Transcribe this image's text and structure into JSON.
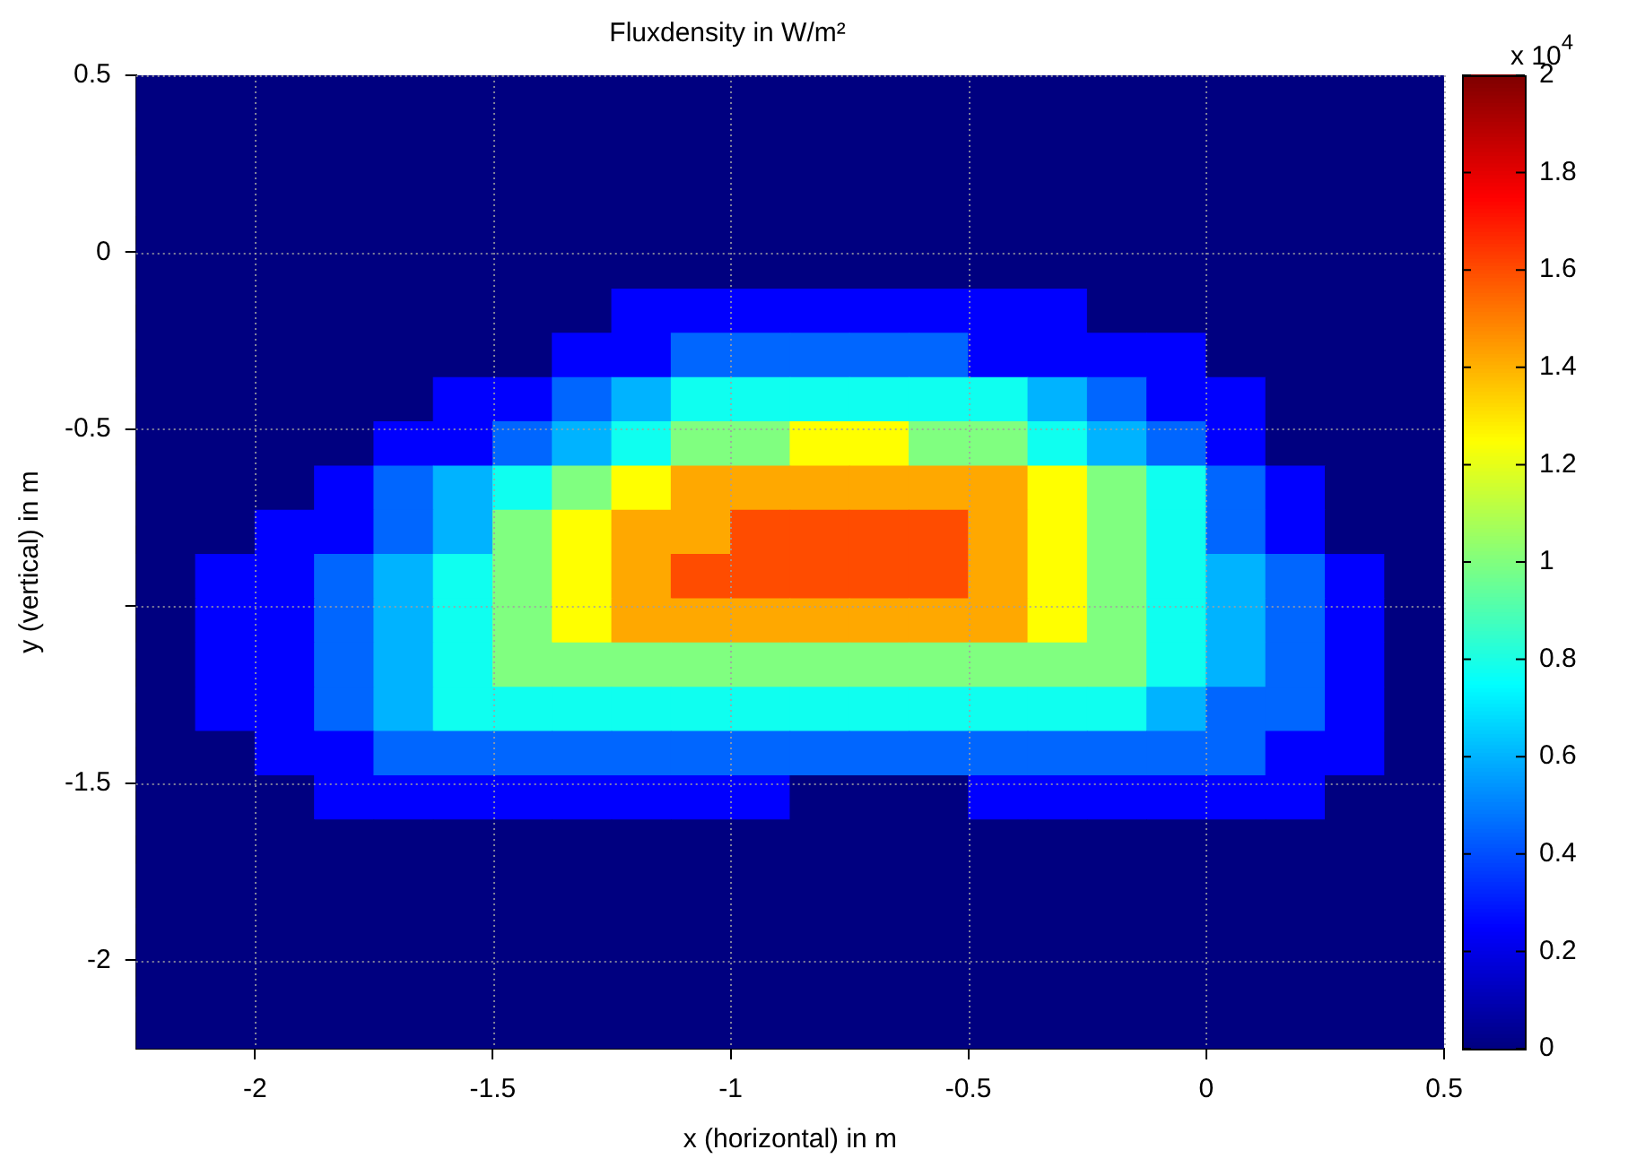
{
  "chart_data": {
    "type": "scatter",
    "title": "Fluxdensity in W/m²",
    "xlabel": "x (horizontal) in m",
    "ylabel": "y (vertical) in m",
    "annotations": [
      "x 10$^{4}$"
    ],
    "xlim": [
      -2.25,
      0.5
    ],
    "ylim": [
      -2.25,
      0.5
    ],
    "xticks": [
      -2,
      -1.5,
      -1,
      -0.5,
      0,
      0.5
    ],
    "yticks": [
      -2,
      -1.5,
      {
        "value": -1,
        "label": null
      },
      -0.5,
      0,
      0.5
    ],
    "grid": true,
    "marker": "square",
    "clim": [
      0,
      2
    ],
    "cticks": [
      0,
      0.2,
      0.4,
      0.6,
      0.8,
      1,
      1.2,
      1.4,
      1.6,
      1.8,
      2
    ],
    "x": [
      -2.1875,
      -2.0625,
      -1.9375,
      -1.8125,
      -1.6875,
      -1.5625,
      -1.4375,
      -1.3125,
      -1.1875,
      -1.0625,
      -0.9375,
      -0.8125,
      -0.6875,
      -0.5625,
      -0.4375,
      -0.3125,
      -0.1875,
      -0.0625,
      0.0625,
      0.1875,
      0.3125,
      0.4375,
      -2.1875,
      -2.0625,
      -1.9375,
      -1.8125,
      -1.6875,
      -1.5625,
      -1.4375,
      -1.3125,
      -1.1875,
      -1.0625,
      -0.9375,
      -0.8125,
      -0.6875,
      -0.5625,
      -0.4375,
      -0.3125,
      -0.1875,
      -0.0625,
      0.0625,
      0.1875,
      0.3125,
      0.4375,
      -2.1875,
      -2.0625,
      -1.9375,
      -1.8125,
      -1.6875,
      -1.5625,
      -1.4375,
      -1.3125,
      -1.1875,
      -1.0625,
      -0.9375,
      -0.8125,
      -0.6875,
      -0.5625,
      -0.4375,
      -0.3125,
      -0.1875,
      -0.0625,
      0.0625,
      0.1875,
      0.3125,
      0.4375,
      -2.1875,
      -2.0625,
      -1.9375,
      -1.8125,
      -1.6875,
      -1.5625,
      -1.4375,
      -1.3125,
      -1.1875,
      -1.0625,
      -0.9375,
      -0.8125,
      -0.6875,
      -0.5625,
      -0.4375,
      -0.3125,
      -0.1875,
      -0.0625,
      0.0625,
      0.1875,
      0.3125,
      0.4375,
      -2.1875,
      -2.0625,
      -1.9375,
      -1.8125,
      -1.6875,
      -1.5625,
      -1.4375,
      -1.3125,
      -1.1875,
      -1.0625,
      -0.9375,
      -0.8125,
      -0.6875,
      -0.5625,
      -0.4375,
      -0.3125,
      -0.1875,
      -0.0625,
      0.0625,
      0.1875,
      0.3125,
      0.4375,
      -2.1875,
      -2.0625,
      -1.9375,
      -1.8125,
      -1.6875,
      -1.5625,
      -1.4375,
      -1.3125,
      -1.1875,
      -1.0625,
      -0.9375,
      -0.8125,
      -0.6875,
      -0.5625,
      -0.4375,
      -0.3125,
      -0.1875,
      -0.0625,
      0.0625,
      0.1875,
      0.3125,
      0.4375,
      -2.1875,
      -2.0625,
      -1.9375,
      -1.8125,
      -1.6875,
      -1.5625,
      -1.4375,
      -1.3125,
      -1.1875,
      -1.0625,
      -0.9375,
      -0.8125,
      -0.6875,
      -0.5625,
      -0.4375,
      -0.3125,
      -0.1875,
      -0.0625,
      0.0625,
      0.1875,
      0.3125,
      0.4375,
      -2.1875,
      -2.0625,
      -1.9375,
      -1.8125,
      -1.6875,
      -1.5625,
      -1.4375,
      -1.3125,
      -1.1875,
      -1.0625,
      -0.9375,
      -0.8125,
      -0.6875,
      -0.5625,
      -0.4375,
      -0.3125,
      -0.1875,
      -0.0625,
      0.0625,
      0.1875,
      0.3125,
      0.4375,
      -2.1875,
      -2.0625,
      -1.9375,
      -1.8125,
      -1.6875,
      -1.5625,
      -1.4375,
      -1.3125,
      -1.1875,
      -1.0625,
      -0.9375,
      -0.8125,
      -0.6875,
      -0.5625,
      -0.4375,
      -0.3125,
      -0.1875,
      -0.0625,
      0.0625,
      0.1875,
      0.3125,
      0.4375,
      -2.1875,
      -2.0625,
      -1.9375,
      -1.8125,
      -1.6875,
      -1.5625,
      -1.4375,
      -1.3125,
      -1.1875,
      -1.0625,
      -0.9375,
      -0.8125,
      -0.6875,
      -0.5625,
      -0.4375,
      -0.3125,
      -0.1875,
      -0.0625,
      0.0625,
      0.1875,
      0.3125,
      0.4375,
      -2.1875,
      -2.0625,
      -1.9375,
      -1.8125,
      -1.6875,
      -1.5625,
      -1.4375,
      -1.3125,
      -1.1875,
      -1.0625,
      -0.9375,
      -0.8125,
      -0.6875,
      -0.5625,
      -0.4375,
      -0.3125,
      -0.1875,
      -0.0625,
      0.0625,
      0.1875,
      0.3125,
      0.4375,
      -2.1875,
      -2.0625,
      -1.9375,
      -1.8125,
      -1.6875,
      -1.5625,
      -1.4375,
      -1.3125,
      -1.1875,
      -1.0625,
      -0.9375,
      -0.8125,
      -0.6875,
      -0.5625,
      -0.4375,
      -0.3125,
      -0.1875,
      -0.0625,
      0.0625,
      0.1875,
      0.3125,
      0.4375,
      -2.1875,
      -2.0625,
      -1.9375,
      -1.8125,
      -1.6875,
      -1.5625,
      -1.4375,
      -1.3125,
      -1.1875,
      -1.0625,
      -0.9375,
      -0.8125,
      -0.6875,
      -0.5625,
      -0.4375,
      -0.3125,
      -0.1875,
      -0.0625,
      0.0625,
      0.1875,
      0.3125,
      0.4375,
      -2.1875,
      -2.0625,
      -1.9375,
      -1.8125,
      -1.6875,
      -1.5625,
      -1.4375,
      -1.3125,
      -1.1875,
      -1.0625,
      -0.9375,
      -0.8125,
      -0.6875,
      -0.5625,
      -0.4375,
      -0.3125,
      -0.1875,
      -0.0625,
      0.0625,
      0.1875,
      0.3125,
      0.4375,
      -2.1875,
      -2.0625,
      -1.9375,
      -1.8125,
      -1.6875,
      -1.5625,
      -1.4375,
      -1.3125,
      -1.1875,
      -1.0625,
      -0.9375,
      -0.8125,
      -0.6875,
      -0.5625,
      -0.4375,
      -0.3125,
      -0.1875,
      -0.0625,
      0.0625,
      0.1875,
      0.3125,
      0.4375,
      -2.1875,
      -2.0625,
      -1.9375,
      -1.8125,
      -1.6875,
      -1.5625,
      -1.4375,
      -1.3125,
      -1.1875,
      -1.0625,
      -0.9375,
      -0.8125,
      -0.6875,
      -0.5625,
      -0.4375,
      -0.3125,
      -0.1875,
      -0.0625,
      0.0625,
      0.1875,
      0.3125,
      0.4375,
      -2.1875,
      -2.0625,
      -1.9375,
      -1.8125,
      -1.6875,
      -1.5625,
      -1.4375,
      -1.3125,
      -1.1875,
      -1.0625,
      -0.9375,
      -0.8125,
      -0.6875,
      -0.5625,
      -0.4375,
      -0.3125,
      -0.1875,
      -0.0625,
      0.0625,
      0.1875,
      0.3125,
      0.4375,
      -2.1875,
      -2.0625,
      -1.9375,
      -1.8125,
      -1.6875,
      -1.5625,
      -1.4375,
      -1.3125,
      -1.1875,
      -1.0625,
      -0.9375,
      -0.8125,
      -0.6875,
      -0.5625,
      -0.4375,
      -0.3125,
      -0.1875,
      -0.0625,
      0.0625,
      0.1875,
      0.3125,
      0.4375,
      -2.1875,
      -2.0625,
      -1.9375,
      -1.8125,
      -1.6875,
      -1.5625,
      -1.4375,
      -1.3125,
      -1.1875,
      -1.0625,
      -0.9375,
      -0.8125,
      -0.6875,
      -0.5625,
      -0.4375,
      -0.3125,
      -0.1875,
      -0.0625,
      0.0625,
      0.1875,
      0.3125,
      0.4375,
      -2.1875,
      -2.0625,
      -1.9375,
      -1.8125,
      -1.6875,
      -1.5625,
      -1.4375,
      -1.3125,
      -1.1875,
      -1.0625,
      -0.9375,
      -0.8125,
      -0.6875,
      -0.5625,
      -0.4375,
      -0.3125,
      -0.1875,
      -0.0625,
      0.0625,
      0.1875,
      0.3125,
      0.4375,
      -2.1875,
      -2.0625,
      -1.9375,
      -1.8125,
      -1.6875,
      -1.5625,
      -1.4375,
      -1.3125,
      -1.1875,
      -1.0625,
      -0.9375,
      -0.8125,
      -0.6875,
      -0.5625,
      -0.4375,
      -0.3125,
      -0.1875,
      -0.0625,
      0.0625,
      0.1875,
      0.3125,
      0.4375,
      -2.1875,
      -2.0625,
      -1.9375,
      -1.8125,
      -1.6875,
      -1.5625,
      -1.4375,
      -1.3125,
      -1.1875,
      -1.0625,
      -0.9375,
      -0.8125,
      -0.6875,
      -0.5625,
      -0.4375,
      -0.3125,
      -0.1875,
      -0.0625,
      0.0625,
      0.1875,
      0.3125,
      0.4375
    ],
    "values": [
      0.4375,
      0.4375,
      0.4375,
      0.4375,
      0.4375,
      0.4375,
      0.4375,
      0.4375,
      0.4375,
      0.4375,
      0.4375,
      0.4375,
      0.4375,
      0.4375,
      0.4375,
      0.4375,
      0.4375,
      0.4375,
      0.4375,
      0.4375,
      0.4375,
      0.4375,
      0.3125,
      0.3125,
      0.3125,
      0.3125,
      0.3125,
      0.3125,
      0.3125,
      0.3125,
      0.3125,
      0.3125,
      0.3125,
      0.3125,
      0.3125,
      0.3125,
      0.3125,
      0.3125,
      0.3125,
      0.3125,
      0.3125,
      0.3125,
      0.3125,
      0.3125,
      0.1875,
      0.1875,
      0.1875,
      0.1875,
      0.1875,
      0.1875,
      0.1875,
      0.1875,
      0.1875,
      0.1875,
      0.1875,
      0.1875,
      0.1875,
      0.1875,
      0.1875,
      0.1875,
      0.1875,
      0.1875,
      0.1875,
      0.1875,
      0.1875,
      0.1875,
      0.0625,
      0.0625,
      0.0625,
      0.0625,
      0.0625,
      0.0625,
      0.0625,
      0.0625,
      0.0625,
      0.0625,
      0.0625,
      0.0625,
      0.0625,
      0.0625,
      0.0625,
      0.0625,
      0.0625,
      0.0625,
      0.0625,
      0.0625,
      0.0625,
      0.0625,
      -0.0625,
      -0.0625,
      -0.0625,
      -0.0625,
      -0.0625,
      -0.0625,
      -0.0625,
      -0.0625,
      -0.0625,
      -0.0625,
      -0.0625,
      -0.0625,
      -0.0625,
      -0.0625,
      -0.0625,
      -0.0625,
      -0.0625,
      -0.0625,
      -0.0625,
      -0.0625,
      -0.0625,
      -0.0625,
      -0.1875,
      -0.1875,
      -0.1875,
      -0.1875,
      -0.1875,
      -0.1875,
      -0.1875,
      -0.1875,
      -0.1875,
      -0.1875,
      -0.1875,
      -0.1875,
      -0.1875,
      -0.1875,
      -0.1875,
      -0.1875,
      -0.1875,
      -0.1875,
      -0.1875,
      -0.1875,
      -0.1875,
      -0.1875,
      -0.3125,
      -0.3125,
      -0.3125,
      -0.3125,
      -0.3125,
      -0.3125,
      -0.3125,
      -0.3125,
      -0.3125,
      -0.3125,
      -0.3125,
      -0.3125,
      -0.3125,
      -0.3125,
      -0.3125,
      -0.3125,
      -0.3125,
      -0.3125,
      -0.3125,
      -0.3125,
      -0.3125,
      -0.3125,
      -0.4375,
      -0.4375,
      -0.4375,
      -0.4375,
      -0.4375,
      -0.4375,
      -0.4375,
      -0.4375,
      -0.4375,
      -0.4375,
      -0.4375,
      -0.4375,
      -0.4375,
      -0.4375,
      -0.4375,
      -0.4375,
      -0.4375,
      -0.4375,
      -0.4375,
      -0.4375,
      -0.4375,
      -0.4375,
      -0.5625,
      -0.5625,
      -0.5625,
      -0.5625,
      -0.5625,
      -0.5625,
      -0.5625,
      -0.5625,
      -0.5625,
      -0.5625,
      -0.5625,
      -0.5625,
      -0.5625,
      -0.5625,
      -0.5625,
      -0.5625,
      -0.5625,
      -0.5625,
      -0.5625,
      -0.5625,
      -0.5625,
      -0.5625,
      -0.6875,
      -0.6875,
      -0.6875,
      -0.6875,
      -0.6875,
      -0.6875,
      -0.6875,
      -0.6875,
      -0.6875,
      -0.6875,
      -0.6875,
      -0.6875,
      -0.6875,
      -0.6875,
      -0.6875,
      -0.6875,
      -0.6875,
      -0.6875,
      -0.6875,
      -0.6875,
      -0.6875,
      -0.6875,
      -0.8125,
      -0.8125,
      -0.8125,
      -0.8125,
      -0.8125,
      -0.8125,
      -0.8125,
      -0.8125,
      -0.8125,
      -0.8125,
      -0.8125,
      -0.8125,
      -0.8125,
      -0.8125,
      -0.8125,
      -0.8125,
      -0.8125,
      -0.8125,
      -0.8125,
      -0.8125,
      -0.8125,
      -0.8125,
      -0.9375,
      -0.9375,
      -0.9375,
      -0.9375,
      -0.9375,
      -0.9375,
      -0.9375,
      -0.9375,
      -0.9375,
      -0.9375,
      -0.9375,
      -0.9375,
      -0.9375,
      -0.9375,
      -0.9375,
      -0.9375,
      -0.9375,
      -0.9375,
      -0.9375,
      -0.9375,
      -0.9375,
      -0.9375,
      -1.0625,
      -1.0625,
      -1.0625,
      -1.0625,
      -1.0625,
      -1.0625,
      -1.0625,
      -1.0625,
      -1.0625,
      -1.0625,
      -1.0625,
      -1.0625,
      -1.0625,
      -1.0625,
      -1.0625,
      -1.0625,
      -1.0625,
      -1.0625,
      -1.0625,
      -1.0625,
      -1.0625,
      -1.0625,
      -1.1875,
      -1.1875,
      -1.1875,
      -1.1875,
      -1.1875,
      -1.1875,
      -1.1875,
      -1.1875,
      -1.1875,
      -1.1875,
      -1.1875,
      -1.1875,
      -1.1875,
      -1.1875,
      -1.1875,
      -1.1875,
      -1.1875,
      -1.1875,
      -1.1875,
      -1.1875,
      -1.1875,
      -1.1875,
      -1.3125,
      -1.3125,
      -1.3125,
      -1.3125,
      -1.3125,
      -1.3125,
      -1.3125,
      -1.3125,
      -1.3125,
      -1.3125,
      -1.3125,
      -1.3125,
      -1.3125,
      -1.3125,
      -1.3125,
      -1.3125,
      -1.3125,
      -1.3125,
      -1.3125,
      -1.3125,
      -1.3125,
      -1.3125,
      -1.4375,
      -1.4375,
      -1.4375,
      -1.4375,
      -1.4375,
      -1.4375,
      -1.4375,
      -1.4375,
      -1.4375,
      -1.4375,
      -1.4375,
      -1.4375,
      -1.4375,
      -1.4375,
      -1.4375,
      -1.4375,
      -1.4375,
      -1.4375,
      -1.4375,
      -1.4375,
      -1.4375,
      -1.4375,
      -1.5625,
      -1.5625,
      -1.5625,
      -1.5625,
      -1.5625,
      -1.5625,
      -1.5625,
      -1.5625,
      -1.5625,
      -1.5625,
      -1.5625,
      -1.5625,
      -1.5625,
      -1.5625,
      -1.5625,
      -1.5625,
      -1.5625,
      -1.5625,
      -1.5625,
      -1.5625,
      -1.5625,
      -1.5625,
      -1.6875,
      -1.6875,
      -1.6875,
      -1.6875,
      -1.6875,
      -1.6875,
      -1.6875,
      -1.6875,
      -1.6875,
      -1.6875,
      -1.6875,
      -1.6875,
      -1.6875,
      -1.6875,
      -1.6875,
      -1.6875,
      -1.6875,
      -1.6875,
      -1.6875,
      -1.6875,
      -1.6875,
      -1.6875,
      -1.8125,
      -1.8125,
      -1.8125,
      -1.8125,
      -1.8125,
      -1.8125,
      -1.8125,
      -1.8125,
      -1.8125,
      -1.8125,
      -1.8125,
      -1.8125,
      -1.8125,
      -1.8125,
      -1.8125,
      -1.8125,
      -1.8125,
      -1.8125,
      -1.8125,
      -1.8125,
      -1.8125,
      -1.8125,
      -1.9375,
      -1.9375,
      -1.9375,
      -1.9375,
      -1.9375,
      -1.9375,
      -1.9375,
      -1.9375,
      -1.9375,
      -1.9375,
      -1.9375,
      -1.9375,
      -1.9375,
      -1.9375,
      -1.9375,
      -1.9375,
      -1.9375,
      -1.9375,
      -1.9375,
      -1.9375,
      -1.9375,
      -1.9375,
      -2.0625,
      -2.0625,
      -2.0625,
      -2.0625,
      -2.0625,
      -2.0625,
      -2.0625,
      -2.0625,
      -2.0625,
      -2.0625,
      -2.0625,
      -2.0625,
      -2.0625,
      -2.0625,
      -2.0625,
      -2.0625,
      -2.0625,
      -2.0625,
      -2.0625,
      -2.0625,
      -2.0625,
      -2.0625,
      -2.1875,
      -2.1875,
      -2.1875,
      -2.1875,
      -2.1875,
      -2.1875,
      -2.1875,
      -2.1875,
      -2.1875,
      -2.1875,
      -2.1875,
      -2.1875,
      -2.1875,
      -2.1875,
      -2.1875,
      -2.1875,
      -2.1875,
      -2.1875,
      -2.1875,
      -2.1875,
      -2.1875,
      -2.1875
    ],
    "cvalues": [
      0,
      0,
      0,
      0,
      0,
      0,
      0,
      0,
      0,
      0,
      0,
      0,
      0,
      0,
      0,
      0,
      0,
      0,
      0,
      0,
      0,
      0,
      0,
      0,
      0,
      0,
      0,
      0,
      0,
      0,
      0,
      0,
      0,
      0,
      0,
      0,
      0,
      0,
      0,
      0,
      0,
      0,
      0,
      0,
      0,
      0,
      0,
      0,
      0,
      0,
      0,
      0,
      0,
      0,
      0,
      0,
      0,
      0,
      0,
      0,
      0,
      0,
      0,
      0,
      0,
      0,
      0,
      0,
      0,
      0,
      0,
      0,
      0,
      0,
      0,
      0,
      0,
      0,
      0,
      0,
      0,
      0,
      0,
      0,
      0,
      0,
      0,
      0,
      0,
      0,
      0,
      0,
      0,
      0,
      0,
      0,
      0,
      0,
      0,
      0,
      0,
      0,
      0,
      0,
      0,
      0,
      0,
      0,
      0,
      0,
      0,
      0,
      0,
      0,
      0,
      0,
      0,
      0,
      0.25,
      0.25,
      0.25,
      0.25,
      0.25,
      0.25,
      0.25,
      0.25,
      0,
      0,
      0,
      0,
      0,
      0,
      0,
      0,
      0,
      0,
      0,
      0,
      0,
      0.25,
      0.25,
      0.45,
      0.45,
      0.45,
      0.45,
      0.45,
      0.25,
      0.25,
      0.25,
      0.25,
      0,
      0,
      0,
      0,
      0,
      0,
      0,
      0,
      0,
      0.25,
      0.25,
      0.45,
      0.6,
      0.78,
      0.78,
      0.78,
      0.78,
      0.78,
      0.78,
      0.6,
      0.45,
      0.25,
      0.25,
      0,
      0,
      0,
      0,
      0,
      0,
      0,
      0.25,
      0.25,
      0.45,
      0.6,
      0.78,
      1,
      1,
      1.25,
      1.25,
      1,
      1,
      0.78,
      0.6,
      0.45,
      0.25,
      0,
      0,
      0,
      0,
      0,
      0,
      0.25,
      0.45,
      0.6,
      0.78,
      1,
      1.25,
      1.42,
      1.42,
      1.42,
      1.42,
      1.42,
      1.42,
      1.25,
      1,
      0.78,
      0.45,
      0.25,
      0,
      0,
      0,
      0,
      0.25,
      0.25,
      0.45,
      0.6,
      1,
      1.25,
      1.42,
      1.42,
      1.6,
      1.6,
      1.6,
      1.6,
      1.42,
      1.25,
      1,
      0.78,
      0.45,
      0.25,
      0,
      0,
      0,
      0.25,
      0.25,
      0.45,
      0.6,
      0.78,
      1,
      1.25,
      1.42,
      1.6,
      1.6,
      1.6,
      1.6,
      1.6,
      1.42,
      1.25,
      1,
      0.78,
      0.6,
      0.45,
      0.25,
      0,
      0,
      0.25,
      0.25,
      0.45,
      0.6,
      0.78,
      1,
      1.25,
      1.42,
      1.42,
      1.42,
      1.42,
      1.42,
      1.42,
      1.42,
      1.25,
      1,
      0.78,
      0.6,
      0.45,
      0.25,
      0,
      0,
      0.25,
      0.25,
      0.45,
      0.6,
      0.78,
      1,
      1,
      1,
      1,
      1,
      1,
      1,
      1,
      1,
      1,
      1,
      0.78,
      0.6,
      0.45,
      0.25,
      0,
      0,
      0.25,
      0.25,
      0.45,
      0.6,
      0.78,
      0.78,
      0.78,
      0.78,
      0.78,
      0.78,
      0.78,
      0.78,
      0.78,
      0.78,
      0.78,
      0.78,
      0.6,
      0.45,
      0.45,
      0.25,
      0,
      0,
      0,
      0.25,
      0.25,
      0.45,
      0.45,
      0.45,
      0.45,
      0.45,
      0.45,
      0.45,
      0.45,
      0.45,
      0.45,
      0.45,
      0.45,
      0.45,
      0.45,
      0.45,
      0.25,
      0.25,
      0,
      0,
      0,
      0,
      0.25,
      0.25,
      0.25,
      0.25,
      0.25,
      0.25,
      0.25,
      0.25,
      0,
      0,
      0,
      0.25,
      0.25,
      0.25,
      0.25,
      0.25,
      0.25,
      0,
      0,
      0,
      0,
      0,
      0,
      0,
      0,
      0,
      0,
      0,
      0,
      0,
      0,
      0,
      0,
      0,
      0,
      0,
      0,
      0,
      0,
      0,
      0,
      0,
      0,
      0,
      0,
      0,
      0,
      0,
      0,
      0,
      0,
      0,
      0,
      0,
      0,
      0,
      0,
      0,
      0,
      0,
      0,
      0,
      0,
      0,
      0,
      0,
      0,
      0,
      0,
      0,
      0,
      0,
      0,
      0,
      0,
      0,
      0,
      0,
      0,
      0,
      0,
      0,
      0,
      0,
      0,
      0,
      0,
      0,
      0,
      0,
      0,
      0,
      0,
      0,
      0,
      0,
      0,
      0,
      0,
      0,
      0,
      0,
      0,
      0,
      0,
      0,
      0,
      0,
      0,
      0,
      0,
      0,
      0,
      0,
      0,
      0,
      0,
      0,
      0,
      0,
      0,
      0,
      0,
      0,
      0,
      0,
      0,
      0,
      0
    ]
  }
}
